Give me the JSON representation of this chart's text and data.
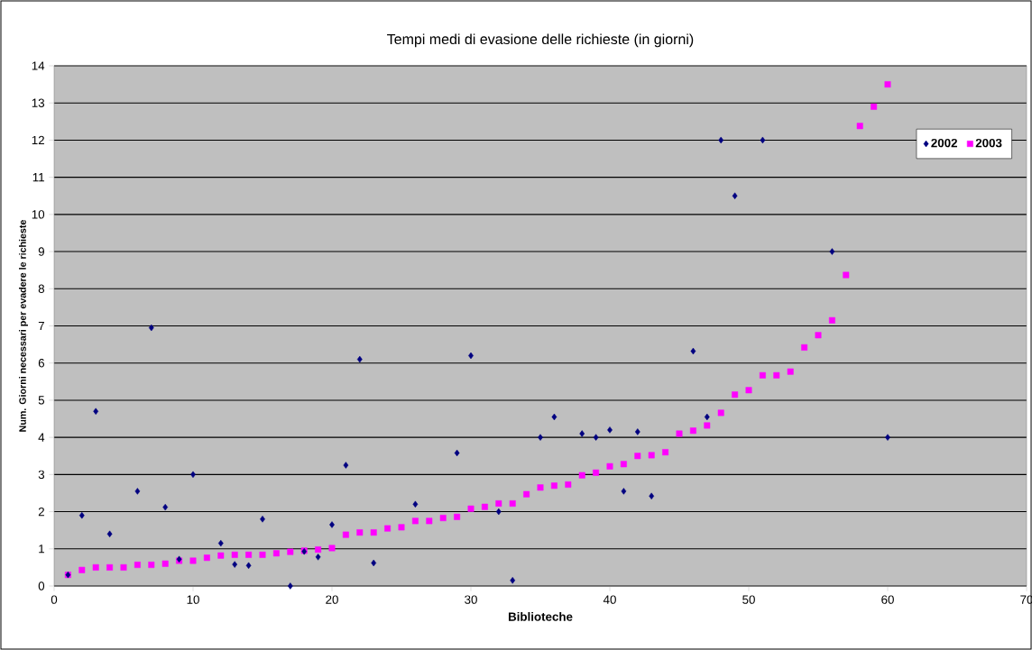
{
  "chart_data": {
    "type": "scatter",
    "title": "Tempi medi di evasione delle richieste (in giorni)",
    "xlabel": "Biblioteche",
    "ylabel": "Num. Giorni necessari per evadere le richieste",
    "xlim": [
      0,
      70
    ],
    "ylim": [
      0,
      14
    ],
    "xticks": [
      0,
      10,
      20,
      30,
      40,
      50,
      60,
      70
    ],
    "yticks": [
      0,
      1,
      2,
      3,
      4,
      5,
      6,
      7,
      8,
      9,
      10,
      11,
      12,
      13,
      14
    ],
    "grid": "y",
    "legend": "right",
    "series": [
      {
        "name": "2002",
        "color": "#000080",
        "marker": "diamond",
        "x": [
          1,
          2,
          3,
          4,
          6,
          7,
          8,
          9,
          10,
          12,
          13,
          14,
          15,
          17,
          18,
          19,
          20,
          21,
          22,
          23,
          26,
          29,
          30,
          32,
          33,
          35,
          36,
          38,
          39,
          40,
          41,
          42,
          43,
          46,
          47,
          48,
          49,
          51,
          56,
          60
        ],
        "values": [
          0.3,
          1.9,
          4.7,
          1.4,
          2.55,
          6.95,
          2.12,
          0.72,
          3.0,
          1.15,
          0.58,
          0.55,
          1.8,
          0.0,
          0.93,
          0.78,
          1.65,
          3.25,
          6.1,
          0.62,
          2.2,
          3.58,
          6.2,
          2.0,
          0.15,
          4.0,
          4.55,
          4.1,
          4.0,
          4.2,
          2.55,
          4.15,
          2.42,
          6.32,
          4.55,
          12.0,
          10.5,
          12.0,
          9.0,
          4.0
        ]
      },
      {
        "name": "2003",
        "color": "#ff00ff",
        "marker": "square",
        "x": [
          1,
          2,
          3,
          4,
          5,
          6,
          7,
          8,
          9,
          10,
          11,
          12,
          13,
          14,
          15,
          16,
          17,
          18,
          19,
          20,
          21,
          22,
          23,
          24,
          25,
          26,
          27,
          28,
          29,
          30,
          31,
          32,
          33,
          34,
          35,
          36,
          37,
          38,
          39,
          40,
          41,
          42,
          43,
          44,
          45,
          46,
          47,
          48,
          49,
          50,
          51,
          52,
          53,
          54,
          55,
          56,
          57,
          58,
          59,
          60
        ],
        "values": [
          0.3,
          0.43,
          0.5,
          0.5,
          0.5,
          0.57,
          0.57,
          0.6,
          0.68,
          0.68,
          0.76,
          0.82,
          0.84,
          0.84,
          0.84,
          0.88,
          0.92,
          0.95,
          0.98,
          1.02,
          1.38,
          1.44,
          1.44,
          1.55,
          1.58,
          1.75,
          1.75,
          1.83,
          1.86,
          2.08,
          2.13,
          2.22,
          2.22,
          2.47,
          2.65,
          2.7,
          2.73,
          2.98,
          3.05,
          3.22,
          3.28,
          3.5,
          3.52,
          3.6,
          4.1,
          4.18,
          4.32,
          4.66,
          5.15,
          5.27,
          5.67,
          5.67,
          5.77,
          6.42,
          6.75,
          7.15,
          8.37,
          12.38,
          12.9,
          13.5
        ]
      }
    ]
  }
}
